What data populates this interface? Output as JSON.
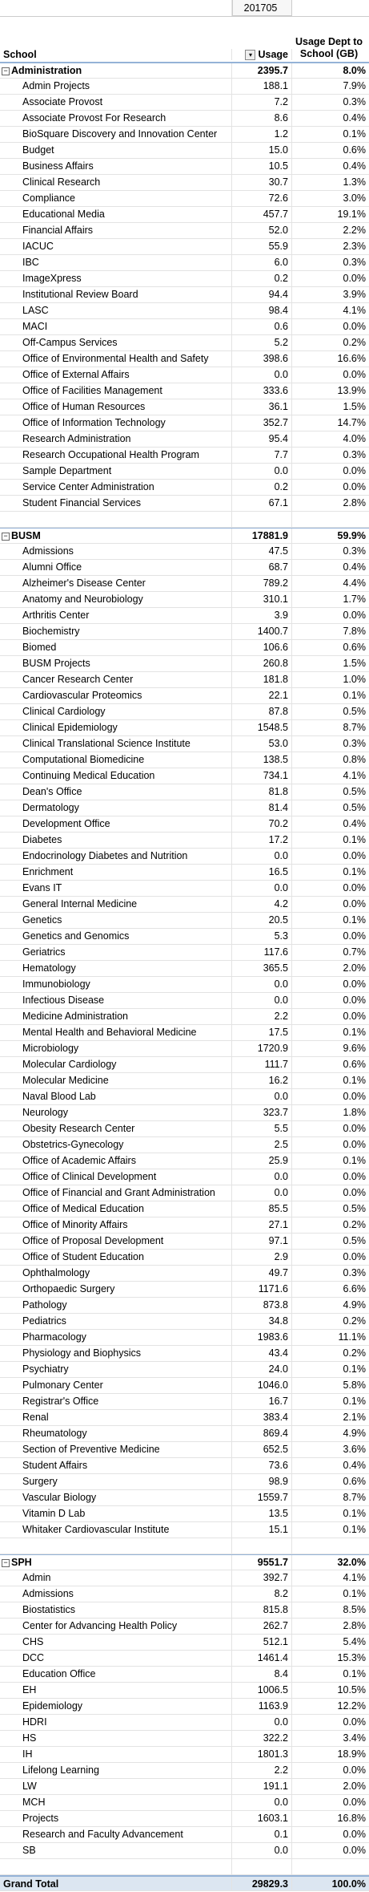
{
  "column_header": "201705",
  "headers": [
    "School",
    "Usage",
    "Usage Dept to School (GB)"
  ],
  "sections": [
    {
      "name": "Administration",
      "usage": "2395.7",
      "pct": "8.0%",
      "rows": [
        [
          "Admin Projects",
          "188.1",
          "7.9%"
        ],
        [
          "Associate Provost",
          "7.2",
          "0.3%"
        ],
        [
          "Associate Provost For Research",
          "8.6",
          "0.4%"
        ],
        [
          "BioSquare Discovery and Innovation Center",
          "1.2",
          "0.1%"
        ],
        [
          "Budget",
          "15.0",
          "0.6%"
        ],
        [
          "Business Affairs",
          "10.5",
          "0.4%"
        ],
        [
          "Clinical Research",
          "30.7",
          "1.3%"
        ],
        [
          "Compliance",
          "72.6",
          "3.0%"
        ],
        [
          "Educational Media",
          "457.7",
          "19.1%"
        ],
        [
          "Financial Affairs",
          "52.0",
          "2.2%"
        ],
        [
          "IACUC",
          "55.9",
          "2.3%"
        ],
        [
          "IBC",
          "6.0",
          "0.3%"
        ],
        [
          "ImageXpress",
          "0.2",
          "0.0%"
        ],
        [
          "Institutional Review Board",
          "94.4",
          "3.9%"
        ],
        [
          "LASC",
          "98.4",
          "4.1%"
        ],
        [
          "MACI",
          "0.6",
          "0.0%"
        ],
        [
          "Off-Campus Services",
          "5.2",
          "0.2%"
        ],
        [
          "Office of Environmental Health and Safety",
          "398.6",
          "16.6%"
        ],
        [
          "Office of External Affairs",
          "0.0",
          "0.0%"
        ],
        [
          "Office of Facilities Management",
          "333.6",
          "13.9%"
        ],
        [
          "Office of Human Resources",
          "36.1",
          "1.5%"
        ],
        [
          "Office of Information Technology",
          "352.7",
          "14.7%"
        ],
        [
          "Research Administration",
          "95.4",
          "4.0%"
        ],
        [
          "Research Occupational Health Program",
          "7.7",
          "0.3%"
        ],
        [
          "Sample Department",
          "0.0",
          "0.0%"
        ],
        [
          "Service Center Administration",
          "0.2",
          "0.0%"
        ],
        [
          "Student Financial Services",
          "67.1",
          "2.8%"
        ]
      ]
    },
    {
      "name": "BUSM",
      "usage": "17881.9",
      "pct": "59.9%",
      "rows": [
        [
          "Admissions",
          "47.5",
          "0.3%"
        ],
        [
          "Alumni Office",
          "68.7",
          "0.4%"
        ],
        [
          "Alzheimer's Disease Center",
          "789.2",
          "4.4%"
        ],
        [
          "Anatomy and Neurobiology",
          "310.1",
          "1.7%"
        ],
        [
          "Arthritis Center",
          "3.9",
          "0.0%"
        ],
        [
          "Biochemistry",
          "1400.7",
          "7.8%"
        ],
        [
          "Biomed",
          "106.6",
          "0.6%"
        ],
        [
          "BUSM Projects",
          "260.8",
          "1.5%"
        ],
        [
          "Cancer Research Center",
          "181.8",
          "1.0%"
        ],
        [
          "Cardiovascular Proteomics",
          "22.1",
          "0.1%"
        ],
        [
          "Clinical Cardiology",
          "87.8",
          "0.5%"
        ],
        [
          "Clinical Epidemiology",
          "1548.5",
          "8.7%"
        ],
        [
          "Clinical Translational Science Institute",
          "53.0",
          "0.3%"
        ],
        [
          "Computational Biomedicine",
          "138.5",
          "0.8%"
        ],
        [
          "Continuing Medical Education",
          "734.1",
          "4.1%"
        ],
        [
          "Dean's Office",
          "81.8",
          "0.5%"
        ],
        [
          "Dermatology",
          "81.4",
          "0.5%"
        ],
        [
          "Development Office",
          "70.2",
          "0.4%"
        ],
        [
          "Diabetes",
          "17.2",
          "0.1%"
        ],
        [
          "Endocrinology Diabetes and Nutrition",
          "0.0",
          "0.0%"
        ],
        [
          "Enrichment",
          "16.5",
          "0.1%"
        ],
        [
          "Evans IT",
          "0.0",
          "0.0%"
        ],
        [
          "General Internal Medicine",
          "4.2",
          "0.0%"
        ],
        [
          "Genetics",
          "20.5",
          "0.1%"
        ],
        [
          "Genetics and Genomics",
          "5.3",
          "0.0%"
        ],
        [
          "Geriatrics",
          "117.6",
          "0.7%"
        ],
        [
          "Hematology",
          "365.5",
          "2.0%"
        ],
        [
          "Immunobiology",
          "0.0",
          "0.0%"
        ],
        [
          "Infectious Disease",
          "0.0",
          "0.0%"
        ],
        [
          "Medicine Administration",
          "2.2",
          "0.0%"
        ],
        [
          "Mental Health and Behavioral Medicine",
          "17.5",
          "0.1%"
        ],
        [
          "Microbiology",
          "1720.9",
          "9.6%"
        ],
        [
          "Molecular Cardiology",
          "111.7",
          "0.6%"
        ],
        [
          "Molecular Medicine",
          "16.2",
          "0.1%"
        ],
        [
          "Naval Blood Lab",
          "0.0",
          "0.0%"
        ],
        [
          "Neurology",
          "323.7",
          "1.8%"
        ],
        [
          "Obesity Research Center",
          "5.5",
          "0.0%"
        ],
        [
          "Obstetrics-Gynecology",
          "2.5",
          "0.0%"
        ],
        [
          "Office of Academic Affairs",
          "25.9",
          "0.1%"
        ],
        [
          "Office of Clinical Development",
          "0.0",
          "0.0%"
        ],
        [
          "Office of Financial and Grant Administration",
          "0.0",
          "0.0%"
        ],
        [
          "Office of Medical Education",
          "85.5",
          "0.5%"
        ],
        [
          "Office of Minority Affairs",
          "27.1",
          "0.2%"
        ],
        [
          "Office of Proposal Development",
          "97.1",
          "0.5%"
        ],
        [
          "Office of Student Education",
          "2.9",
          "0.0%"
        ],
        [
          "Ophthalmology",
          "49.7",
          "0.3%"
        ],
        [
          "Orthopaedic Surgery",
          "1171.6",
          "6.6%"
        ],
        [
          "Pathology",
          "873.8",
          "4.9%"
        ],
        [
          "Pediatrics",
          "34.8",
          "0.2%"
        ],
        [
          "Pharmacology",
          "1983.6",
          "11.1%"
        ],
        [
          "Physiology and Biophysics",
          "43.4",
          "0.2%"
        ],
        [
          "Psychiatry",
          "24.0",
          "0.1%"
        ],
        [
          "Pulmonary Center",
          "1046.0",
          "5.8%"
        ],
        [
          "Registrar's Office",
          "16.7",
          "0.1%"
        ],
        [
          "Renal",
          "383.4",
          "2.1%"
        ],
        [
          "Rheumatology",
          "869.4",
          "4.9%"
        ],
        [
          "Section of Preventive Medicine",
          "652.5",
          "3.6%"
        ],
        [
          "Student Affairs",
          "73.6",
          "0.4%"
        ],
        [
          "Surgery",
          "98.9",
          "0.6%"
        ],
        [
          "Vascular Biology",
          "1559.7",
          "8.7%"
        ],
        [
          "Vitamin D Lab",
          "13.5",
          "0.1%"
        ],
        [
          "Whitaker Cardiovascular Institute",
          "15.1",
          "0.1%"
        ]
      ]
    },
    {
      "name": "SPH",
      "usage": "9551.7",
      "pct": "32.0%",
      "rows": [
        [
          "Admin",
          "392.7",
          "4.1%"
        ],
        [
          "Admissions",
          "8.2",
          "0.1%"
        ],
        [
          "Biostatistics",
          "815.8",
          "8.5%"
        ],
        [
          "Center for Advancing Health Policy",
          "262.7",
          "2.8%"
        ],
        [
          "CHS",
          "512.1",
          "5.4%"
        ],
        [
          "DCC",
          "1461.4",
          "15.3%"
        ],
        [
          "Education Office",
          "8.4",
          "0.1%"
        ],
        [
          "EH",
          "1006.5",
          "10.5%"
        ],
        [
          "Epidemiology",
          "1163.9",
          "12.2%"
        ],
        [
          "HDRI",
          "0.0",
          "0.0%"
        ],
        [
          "HS",
          "322.2",
          "3.4%"
        ],
        [
          "IH",
          "1801.3",
          "18.9%"
        ],
        [
          "Lifelong Learning",
          "2.2",
          "0.0%"
        ],
        [
          "LW",
          "191.1",
          "2.0%"
        ],
        [
          "MCH",
          "0.0",
          "0.0%"
        ],
        [
          "Projects",
          "1603.1",
          "16.8%"
        ],
        [
          "Research and Faculty Advancement",
          "0.1",
          "0.0%"
        ],
        [
          "SB",
          "0.0",
          "0.0%"
        ]
      ]
    }
  ],
  "grand_total": {
    "label": "Grand Total",
    "usage": "29829.3",
    "pct": "100.0%"
  }
}
